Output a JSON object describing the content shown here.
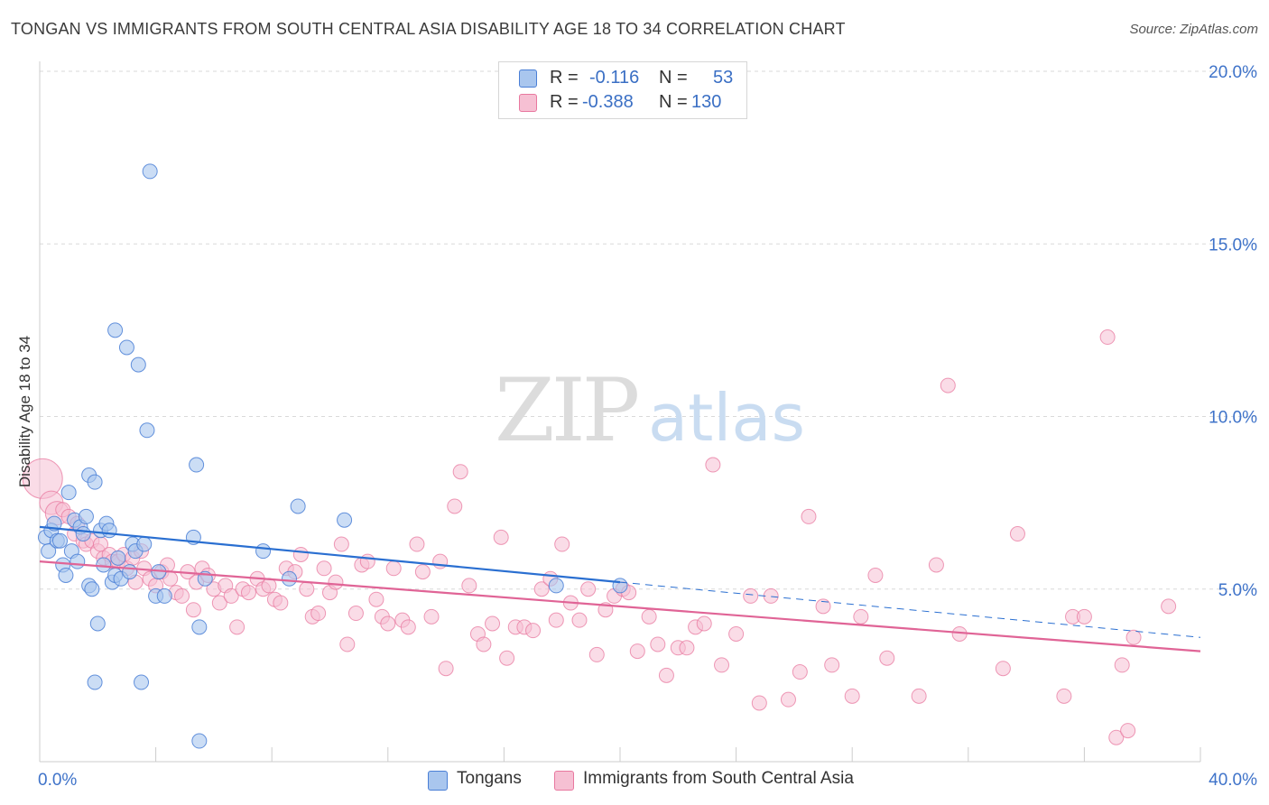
{
  "title": "TONGAN VS IMMIGRANTS FROM SOUTH CENTRAL ASIA DISABILITY AGE 18 TO 34 CORRELATION CHART",
  "source": "Source: ZipAtlas.com",
  "watermark": {
    "zip": "ZIP",
    "atlas": "atlas"
  },
  "colors": {
    "blue": "#4a7fd6",
    "blue_fill": "#a9c6ee",
    "blue_line": "#2a6fd1",
    "pink": "#e8789f",
    "pink_fill": "#f6c0d3",
    "pink_line": "#e06496",
    "tick_text": "#3f73c9",
    "grid": "#d9d9d9"
  },
  "legend": {
    "rows": [
      {
        "r_label": "R =",
        "r_value": "-0.116",
        "n_label": "N =",
        "n_value": "53"
      },
      {
        "r_label": "R =",
        "r_value": "-0.388",
        "n_label": "N =",
        "n_value": "130"
      }
    ]
  },
  "bottom_legend": [
    "Tongans",
    "Immigrants from South Central Asia"
  ],
  "chart_data": {
    "type": "scatter",
    "title": "TONGAN VS IMMIGRANTS FROM SOUTH CENTRAL ASIA DISABILITY AGE 18 TO 34 CORRELATION CHART",
    "xlabel": "",
    "ylabel": "Disability Age 18 to 34",
    "xlim": [
      0,
      40
    ],
    "ylim": [
      0,
      20
    ],
    "x_tick_labels": [
      "0.0%",
      "40.0%"
    ],
    "y_tick_labels": [
      "5.0%",
      "10.0%",
      "15.0%",
      "20.0%"
    ],
    "y_ticks": [
      5,
      10,
      15,
      20
    ],
    "grid": true,
    "legend_position": "top-center",
    "series": [
      {
        "name": "Tongans",
        "r": -0.116,
        "n": 53,
        "trend": {
          "x0": 0,
          "y0": 6.8,
          "x1": 20,
          "y1": 5.2,
          "dashed_to_x": 40,
          "dashed_to_y": 3.6
        },
        "points": [
          [
            0.2,
            6.5
          ],
          [
            0.3,
            6.1
          ],
          [
            0.4,
            6.7
          ],
          [
            0.5,
            6.9
          ],
          [
            0.6,
            6.4
          ],
          [
            0.7,
            6.4
          ],
          [
            0.8,
            5.7
          ],
          [
            0.9,
            5.4
          ],
          [
            1.0,
            7.8
          ],
          [
            1.1,
            6.1
          ],
          [
            1.2,
            7.0
          ],
          [
            1.3,
            5.8
          ],
          [
            1.4,
            6.8
          ],
          [
            1.5,
            6.6
          ],
          [
            1.6,
            7.1
          ],
          [
            1.7,
            5.1
          ],
          [
            1.8,
            5.0
          ],
          [
            1.9,
            2.3
          ],
          [
            2.0,
            4.0
          ],
          [
            2.1,
            6.7
          ],
          [
            2.2,
            5.7
          ],
          [
            2.3,
            6.9
          ],
          [
            2.4,
            6.7
          ],
          [
            2.5,
            5.2
          ],
          [
            2.6,
            5.4
          ],
          [
            2.7,
            5.9
          ],
          [
            2.8,
            5.3
          ],
          [
            3.0,
            12.0
          ],
          [
            3.1,
            5.5
          ],
          [
            3.2,
            6.3
          ],
          [
            3.3,
            6.1
          ],
          [
            3.4,
            11.5
          ],
          [
            3.5,
            2.3
          ],
          [
            3.6,
            6.3
          ],
          [
            3.7,
            9.6
          ],
          [
            3.8,
            17.1
          ],
          [
            4.0,
            4.8
          ],
          [
            4.1,
            5.5
          ],
          [
            4.3,
            4.8
          ],
          [
            5.3,
            6.5
          ],
          [
            5.4,
            8.6
          ],
          [
            5.5,
            3.9
          ],
          [
            5.5,
            0.6
          ],
          [
            5.7,
            5.3
          ],
          [
            7.7,
            6.1
          ],
          [
            8.6,
            5.3
          ],
          [
            8.9,
            7.4
          ],
          [
            10.5,
            7.0
          ],
          [
            1.7,
            8.3
          ],
          [
            1.9,
            8.1
          ],
          [
            2.6,
            12.5
          ],
          [
            17.8,
            5.1
          ],
          [
            20.0,
            5.1
          ]
        ]
      },
      {
        "name": "Immigrants from South Central Asia",
        "r": -0.388,
        "n": 130,
        "trend": {
          "x0": 0,
          "y0": 5.8,
          "x1": 40,
          "y1": 3.2
        },
        "points": [
          [
            0.1,
            8.2
          ],
          [
            0.4,
            7.5
          ],
          [
            0.6,
            7.2
          ],
          [
            0.8,
            7.3
          ],
          [
            1.0,
            7.1
          ],
          [
            1.2,
            6.6
          ],
          [
            1.3,
            6.9
          ],
          [
            1.5,
            6.4
          ],
          [
            1.6,
            6.3
          ],
          [
            1.8,
            6.4
          ],
          [
            2.0,
            6.1
          ],
          [
            2.1,
            6.3
          ],
          [
            2.2,
            5.9
          ],
          [
            2.4,
            6.0
          ],
          [
            2.5,
            5.8
          ],
          [
            2.7,
            5.8
          ],
          [
            2.9,
            6.0
          ],
          [
            3.0,
            5.6
          ],
          [
            3.2,
            5.9
          ],
          [
            3.3,
            5.2
          ],
          [
            3.5,
            6.1
          ],
          [
            3.6,
            5.6
          ],
          [
            3.8,
            5.3
          ],
          [
            4.0,
            5.1
          ],
          [
            4.2,
            5.5
          ],
          [
            4.4,
            5.7
          ],
          [
            4.5,
            5.3
          ],
          [
            4.7,
            4.9
          ],
          [
            4.9,
            4.8
          ],
          [
            5.1,
            5.5
          ],
          [
            5.3,
            4.4
          ],
          [
            5.4,
            5.2
          ],
          [
            5.6,
            5.6
          ],
          [
            5.8,
            5.4
          ],
          [
            6.0,
            5.0
          ],
          [
            6.2,
            4.6
          ],
          [
            6.4,
            5.1
          ],
          [
            6.6,
            4.8
          ],
          [
            6.8,
            3.9
          ],
          [
            7.0,
            5.0
          ],
          [
            7.2,
            4.9
          ],
          [
            7.5,
            5.3
          ],
          [
            7.7,
            5.0
          ],
          [
            7.9,
            5.1
          ],
          [
            8.1,
            4.7
          ],
          [
            8.3,
            4.6
          ],
          [
            8.5,
            5.6
          ],
          [
            8.8,
            5.5
          ],
          [
            9.0,
            6.0
          ],
          [
            9.2,
            5.0
          ],
          [
            9.4,
            4.2
          ],
          [
            9.6,
            4.3
          ],
          [
            9.8,
            5.6
          ],
          [
            10.0,
            4.9
          ],
          [
            10.2,
            5.2
          ],
          [
            10.4,
            6.3
          ],
          [
            10.6,
            3.4
          ],
          [
            10.9,
            4.3
          ],
          [
            11.1,
            5.7
          ],
          [
            11.3,
            5.8
          ],
          [
            11.6,
            4.7
          ],
          [
            11.8,
            4.2
          ],
          [
            12.0,
            4.0
          ],
          [
            12.2,
            5.6
          ],
          [
            12.5,
            4.1
          ],
          [
            12.7,
            3.9
          ],
          [
            13.0,
            6.3
          ],
          [
            13.2,
            5.5
          ],
          [
            13.5,
            4.2
          ],
          [
            13.8,
            5.8
          ],
          [
            14.0,
            2.7
          ],
          [
            14.3,
            7.4
          ],
          [
            14.5,
            8.4
          ],
          [
            14.8,
            5.1
          ],
          [
            15.1,
            3.7
          ],
          [
            15.3,
            3.4
          ],
          [
            15.6,
            4.0
          ],
          [
            15.9,
            6.5
          ],
          [
            16.1,
            3.0
          ],
          [
            16.4,
            3.9
          ],
          [
            16.7,
            3.9
          ],
          [
            17.0,
            3.8
          ],
          [
            17.3,
            5.0
          ],
          [
            17.6,
            5.3
          ],
          [
            17.8,
            4.1
          ],
          [
            18.0,
            6.3
          ],
          [
            18.3,
            4.6
          ],
          [
            18.6,
            4.1
          ],
          [
            18.9,
            5.0
          ],
          [
            19.2,
            3.1
          ],
          [
            19.5,
            4.4
          ],
          [
            19.8,
            4.8
          ],
          [
            20.1,
            5.0
          ],
          [
            20.3,
            4.9
          ],
          [
            20.6,
            3.2
          ],
          [
            21.0,
            4.2
          ],
          [
            21.3,
            3.4
          ],
          [
            21.6,
            2.5
          ],
          [
            22.0,
            3.3
          ],
          [
            22.3,
            3.3
          ],
          [
            22.6,
            3.9
          ],
          [
            22.9,
            4.0
          ],
          [
            23.2,
            8.6
          ],
          [
            23.5,
            2.8
          ],
          [
            24.0,
            3.7
          ],
          [
            24.5,
            4.8
          ],
          [
            24.8,
            1.7
          ],
          [
            25.2,
            4.8
          ],
          [
            25.8,
            1.8
          ],
          [
            26.2,
            2.6
          ],
          [
            26.5,
            7.1
          ],
          [
            27.0,
            4.5
          ],
          [
            27.3,
            2.8
          ],
          [
            28.0,
            1.9
          ],
          [
            28.3,
            4.2
          ],
          [
            28.8,
            5.4
          ],
          [
            29.2,
            3.0
          ],
          [
            30.3,
            1.9
          ],
          [
            30.9,
            5.7
          ],
          [
            31.3,
            10.9
          ],
          [
            31.7,
            3.7
          ],
          [
            33.2,
            2.7
          ],
          [
            33.7,
            6.6
          ],
          [
            35.3,
            1.9
          ],
          [
            35.6,
            4.2
          ],
          [
            36.0,
            4.2
          ],
          [
            36.8,
            12.3
          ],
          [
            37.1,
            0.7
          ],
          [
            37.3,
            2.8
          ],
          [
            37.5,
            0.9
          ],
          [
            37.7,
            3.6
          ],
          [
            38.9,
            4.5
          ]
        ]
      }
    ]
  }
}
